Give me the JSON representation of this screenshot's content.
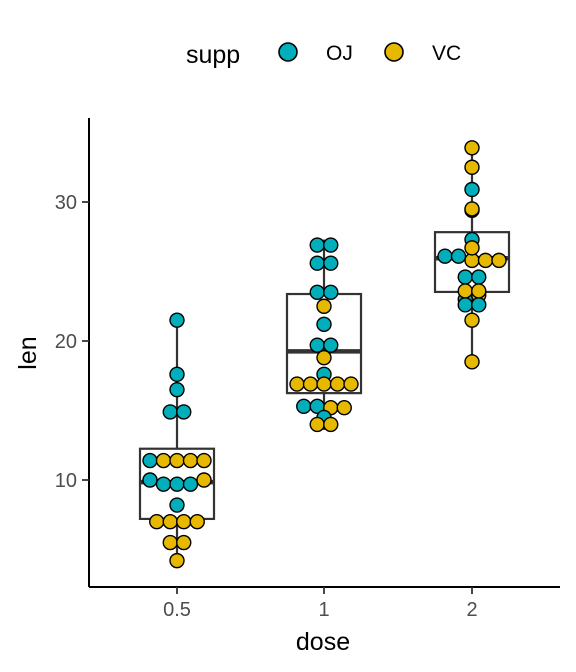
{
  "chart_data": {
    "type": "boxplot-dotplot",
    "xlabel": "dose",
    "ylabel": "len",
    "categories": [
      "0.5",
      "1",
      "2"
    ],
    "ylim": [
      3,
      36
    ],
    "yticks": [
      10,
      20,
      30
    ],
    "grid": false,
    "legend": {
      "title": "supp",
      "position": "top",
      "entries": [
        {
          "label": "OJ",
          "color": "#00AFBB"
        },
        {
          "label": "VC",
          "color": "#E7B800"
        }
      ]
    },
    "boxes": [
      {
        "category": "0.5",
        "min": 4.2,
        "q1": 7.2,
        "median": 9.85,
        "q3": 12.25,
        "max": 21.5
      },
      {
        "category": "1",
        "min": 13.6,
        "q1": 16.25,
        "median": 19.25,
        "q3": 23.38,
        "max": 27.3
      },
      {
        "category": "2",
        "min": 18.5,
        "q1": 23.53,
        "median": 25.95,
        "q3": 27.83,
        "max": 33.9
      }
    ],
    "series": [
      {
        "name": "OJ",
        "color": "#00AFBB",
        "points": [
          {
            "dose": "0.5",
            "values": [
              21.5,
              17.6,
              16.5,
              14.9,
              14.9,
              11.4,
              10.0,
              9.7,
              9.7,
              9.7,
              8.2
            ]
          },
          {
            "dose": "1",
            "values": [
              26.9,
              26.9,
              25.6,
              25.6,
              23.5,
              23.5,
              21.2,
              19.7,
              19.7,
              17.6,
              15.3,
              15.3,
              14.5
            ]
          },
          {
            "dose": "2",
            "values": [
              30.9,
              29.4,
              27.3,
              26.1,
              26.1,
              24.6,
              24.6,
              23.0,
              22.6,
              22.6
            ]
          }
        ]
      },
      {
        "name": "VC",
        "color": "#E7B800",
        "points": [
          {
            "dose": "0.5",
            "values": [
              11.4,
              11.4,
              11.4,
              11.4,
              10.0,
              7.0,
              7.0,
              7.0,
              7.0,
              5.5,
              5.5,
              4.2
            ]
          },
          {
            "dose": "1",
            "values": [
              22.5,
              18.8,
              16.9,
              16.9,
              16.9,
              16.9,
              16.9,
              15.2,
              15.2,
              14.0,
              14.0
            ]
          },
          {
            "dose": "2",
            "values": [
              33.9,
              32.5,
              29.5,
              26.7,
              25.8,
              25.8,
              25.8,
              23.6,
              23.6,
              23.3,
              21.5,
              18.5
            ]
          }
        ]
      }
    ]
  }
}
